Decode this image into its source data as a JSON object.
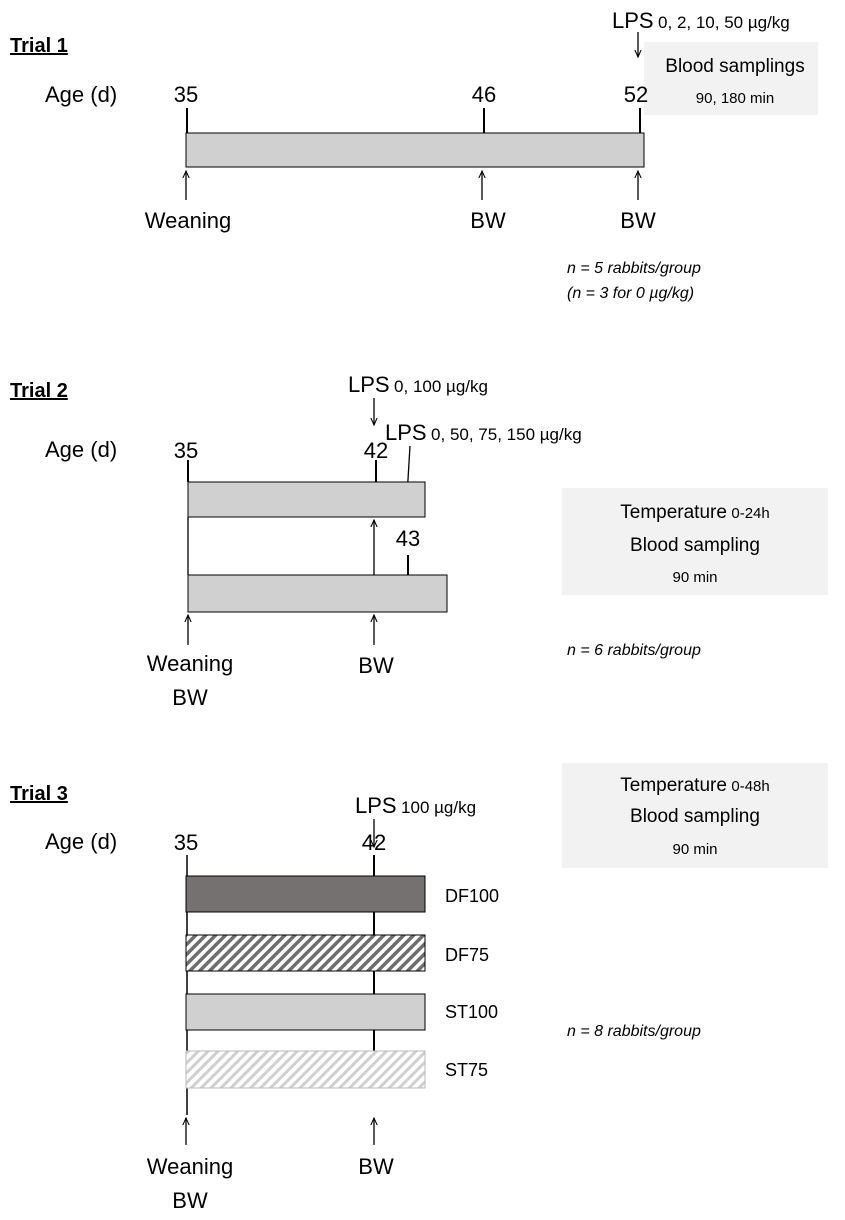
{
  "trial1": {
    "title": "Trial 1",
    "age_label": "Age (d)",
    "ages": [
      35,
      46,
      52
    ],
    "lps": {
      "label": "LPS",
      "doses": "0, 2, 10, 50 µg/kg"
    },
    "box": [
      "Blood samplings",
      "90, 180 min"
    ],
    "events": [
      "Weaning",
      "BW",
      "BW"
    ],
    "notes": [
      "n = 5 rabbits/group",
      "(n = 3 for 0 µg/kg)"
    ]
  },
  "trial2": {
    "title": "Trial 2",
    "age_label": "Age (d)",
    "ages": [
      35,
      42,
      43
    ],
    "lps": [
      {
        "label": "LPS",
        "doses": "0, 100 µg/kg"
      },
      {
        "label": "LPS",
        "doses": "0, 50, 75, 150 µg/kg"
      }
    ],
    "box": {
      "temperature": "Temperature",
      "period": "0-24h",
      "sampling": "Blood sampling",
      "time": "90 min"
    },
    "events": [
      "Weaning",
      "BW",
      "BW"
    ],
    "notes": [
      "n = 6 rabbits/group"
    ]
  },
  "trial3": {
    "title": "Trial 3",
    "age_label": "Age (d)",
    "ages": [
      35,
      42
    ],
    "lps": {
      "label": "LPS",
      "doses": "100 µg/kg"
    },
    "box": {
      "temperature": "Temperature",
      "period": "0-48h",
      "sampling": "Blood sampling",
      "time": "90 min"
    },
    "groups": [
      "DF100",
      "DF75",
      "ST100",
      "ST75"
    ],
    "events": [
      "Weaning",
      "BW",
      "BW"
    ],
    "notes": [
      "n = 8 rabbits/group"
    ]
  }
}
